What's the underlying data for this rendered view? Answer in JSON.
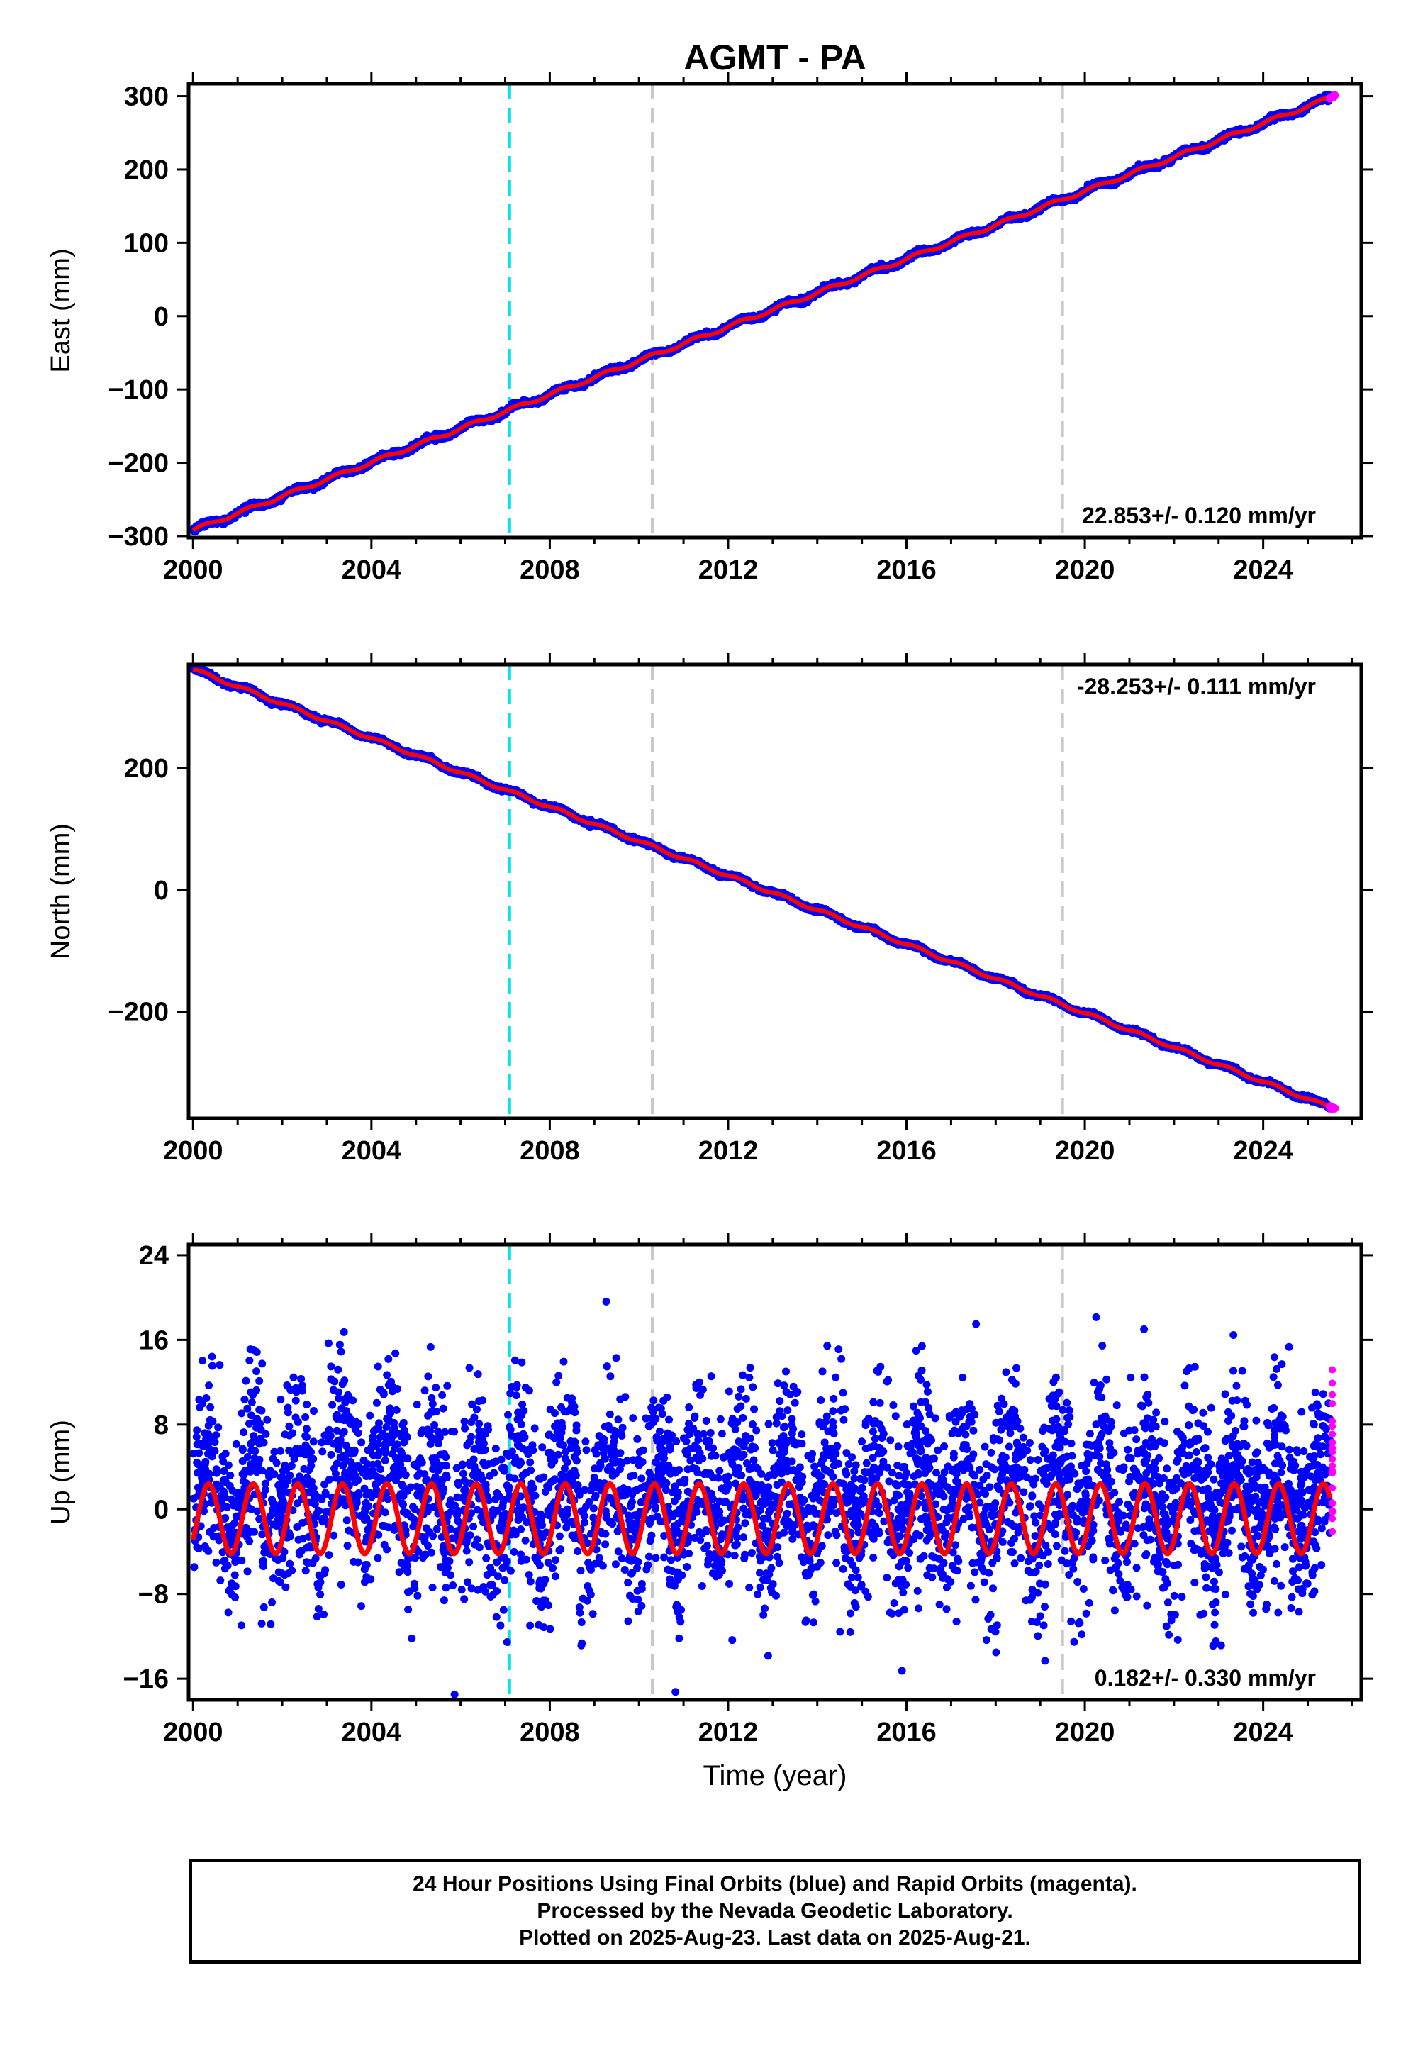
{
  "title": "AGMT - PA",
  "colors": {
    "final": "#0000ff",
    "rapid": "#ff00ff",
    "model": "#ff0000",
    "break_cyan": "#00e5ee",
    "break_gray": "#c8c8c8",
    "frame": "#000000"
  },
  "breaks": [
    {
      "year": 2007.1,
      "color": "cyan"
    },
    {
      "year": 2010.3,
      "color": "gray"
    },
    {
      "year": 2019.5,
      "color": "gray"
    }
  ],
  "x_axis": {
    "range": [
      1999.9,
      2026.2
    ],
    "ticks": [
      2000,
      2004,
      2008,
      2012,
      2016,
      2020,
      2024
    ],
    "tick_labels": [
      "2000",
      "2004",
      "2008",
      "2012",
      "2016",
      "2020",
      "2024"
    ],
    "label": "Time (year)"
  },
  "chart_data": [
    {
      "type": "scatter",
      "ylabel": "East (mm)",
      "ylim": [
        -302,
        317
      ],
      "yticks": [
        -300,
        -200,
        -100,
        0,
        100,
        200,
        300
      ],
      "ytick_labels": [
        "−300",
        "−200",
        "−100",
        "0",
        "100",
        "200",
        "300"
      ],
      "rate_label": "22.853+/- 0.120 mm/yr",
      "rate_position": "bottom-right",
      "trend": {
        "start_year": 2000.0,
        "start_value": -292,
        "end_year": 2025.6,
        "end_value": 300
      },
      "series": [
        {
          "name": "Final Orbits (blue)",
          "x_range": [
            2000.0,
            2025.5
          ]
        },
        {
          "name": "Rapid Orbits (magenta)",
          "x_range": [
            2025.5,
            2025.6
          ]
        }
      ]
    },
    {
      "type": "scatter",
      "ylabel": "North (mm)",
      "ylim": [
        -375,
        370
      ],
      "yticks": [
        -200,
        0,
        200
      ],
      "ytick_labels": [
        "−200",
        "0",
        "200"
      ],
      "rate_label": "-28.253+/- 0.111 mm/yr",
      "rate_position": "top-right",
      "trend": {
        "start_year": 2000.0,
        "start_value": 362,
        "end_year": 2025.6,
        "end_value": -360
      },
      "series": [
        {
          "name": "Final Orbits (blue)",
          "x_range": [
            2000.0,
            2025.5
          ]
        },
        {
          "name": "Rapid Orbits (magenta)",
          "x_range": [
            2025.5,
            2025.6
          ]
        }
      ]
    },
    {
      "type": "scatter",
      "ylabel": "Up (mm)",
      "ylim": [
        -18,
        25
      ],
      "yticks": [
        -16,
        -8,
        0,
        8,
        16,
        24
      ],
      "ytick_labels": [
        "−16",
        "−8",
        "0",
        "8",
        "16",
        "24"
      ],
      "rate_label": "0.182+/- 0.330 mm/yr",
      "rate_position": "bottom-right",
      "seasonal_amplitude": 3.3,
      "scatter_spread": 4.5,
      "series": [
        {
          "name": "Final Orbits (blue)",
          "x_range": [
            2000.0,
            2025.5
          ]
        },
        {
          "name": "Rapid Orbits (magenta)",
          "x_range": [
            2025.5,
            2025.6
          ]
        }
      ]
    }
  ],
  "footer": {
    "line1": "24 Hour Positions Using Final Orbits (blue) and Rapid Orbits (magenta).",
    "line2": "Processed by the Nevada Geodetic Laboratory.",
    "line3": "Plotted on 2025-Aug-23. Last data on 2025-Aug-21."
  }
}
